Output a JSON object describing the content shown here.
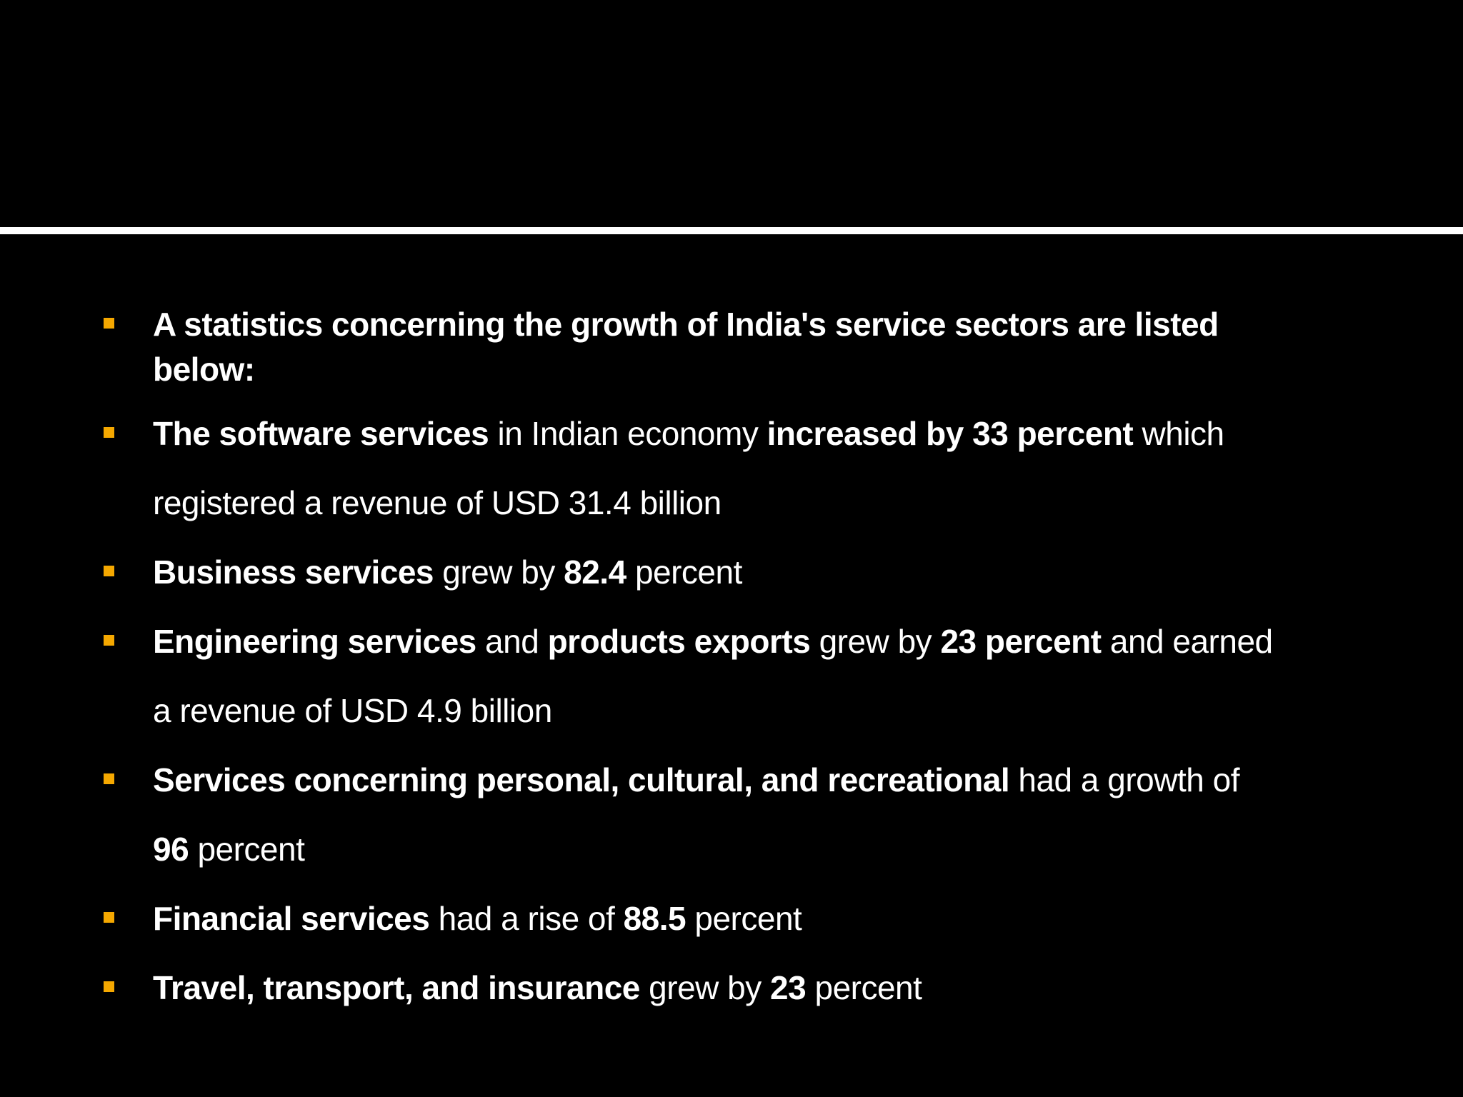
{
  "slide": {
    "bullet_color": "#F5A800",
    "divider_color": "#FFFFFF",
    "background_color": "#000000",
    "bullets": [
      {
        "lines": [
          [
            {
              "text": "A statistics concerning the growth of India's service sectors are listed",
              "bold": true
            }
          ],
          [
            {
              "text": "below:",
              "bold": true
            }
          ]
        ]
      },
      {
        "lines": [
          [
            {
              "text": "The software services",
              "bold": true
            },
            {
              "text": " in Indian economy ",
              "bold": false
            },
            {
              "text": "increased by 33 percent",
              "bold": true
            },
            {
              "text": " which",
              "bold": false
            }
          ],
          [
            {
              "text": "registered a revenue of USD 31.4 billion",
              "bold": false
            }
          ]
        ]
      },
      {
        "lines": [
          [
            {
              "text": "Business services",
              "bold": true
            },
            {
              "text": " grew by ",
              "bold": false
            },
            {
              "text": "82.4",
              "bold": true
            },
            {
              "text": " percent",
              "bold": false
            }
          ]
        ]
      },
      {
        "lines": [
          [
            {
              "text": "Engineering services",
              "bold": true
            },
            {
              "text": " and ",
              "bold": false
            },
            {
              "text": "products exports",
              "bold": true
            },
            {
              "text": " grew by ",
              "bold": false
            },
            {
              "text": "23 percent",
              "bold": true
            },
            {
              "text": " and earned",
              "bold": false
            }
          ],
          [
            {
              "text": "a revenue of USD 4.9 billion",
              "bold": false
            }
          ]
        ]
      },
      {
        "lines": [
          [
            {
              "text": "Services concerning personal, cultural, and recreational",
              "bold": true
            },
            {
              "text": " had a growth of",
              "bold": false
            }
          ],
          [
            {
              "text": "96",
              "bold": true
            },
            {
              "text": " percent",
              "bold": false
            }
          ]
        ]
      },
      {
        "lines": [
          [
            {
              "text": "Financial services",
              "bold": true
            },
            {
              "text": " had a rise of ",
              "bold": false
            },
            {
              "text": "88.5",
              "bold": true
            },
            {
              "text": " percent",
              "bold": false
            }
          ]
        ]
      },
      {
        "lines": [
          [
            {
              "text": "Travel, transport, and insurance",
              "bold": true
            },
            {
              "text": " grew by ",
              "bold": false
            },
            {
              "text": "23",
              "bold": true
            },
            {
              "text": " percent",
              "bold": false
            }
          ]
        ]
      }
    ]
  }
}
